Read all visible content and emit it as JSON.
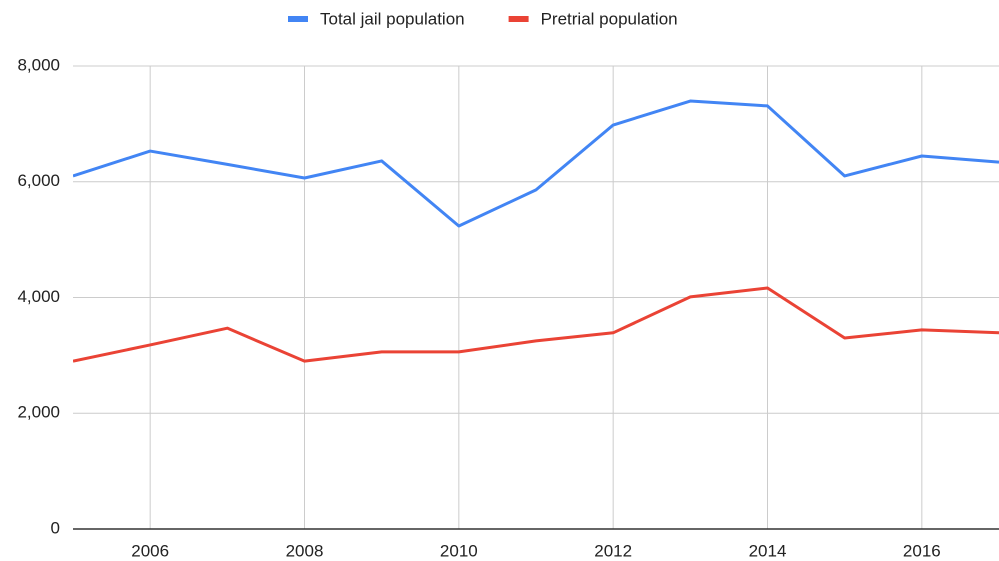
{
  "chart_data": {
    "type": "line",
    "x": [
      2005,
      2006,
      2007,
      2008,
      2009,
      2010,
      2011,
      2012,
      2013,
      2014,
      2015,
      2016,
      2017
    ],
    "series": [
      {
        "name": "Total jail population",
        "color": "#4285f4",
        "values": [
          6100,
          6530,
          6300,
          6065,
          6360,
          5235,
          5860,
          6980,
          7395,
          7310,
          6100,
          6445,
          6340
        ]
      },
      {
        "name": "Pretrial population",
        "color": "#ea4335",
        "values": [
          2900,
          3180,
          3470,
          2900,
          3060,
          3060,
          3250,
          3390,
          4010,
          4165,
          3300,
          3440,
          3390
        ]
      }
    ],
    "xlim": [
      2005,
      2017
    ],
    "xticks": [
      2006,
      2008,
      2010,
      2012,
      2014,
      2016
    ],
    "ylim": [
      0,
      8000
    ],
    "yticks": [
      0,
      {
        "value": 2000,
        "label": "2,000"
      },
      {
        "value": 4000,
        "label": "4,000"
      },
      {
        "value": 6000,
        "label": "6,000"
      },
      {
        "value": 8000,
        "label": "8,000"
      }
    ],
    "grid": true,
    "legend": "top"
  }
}
